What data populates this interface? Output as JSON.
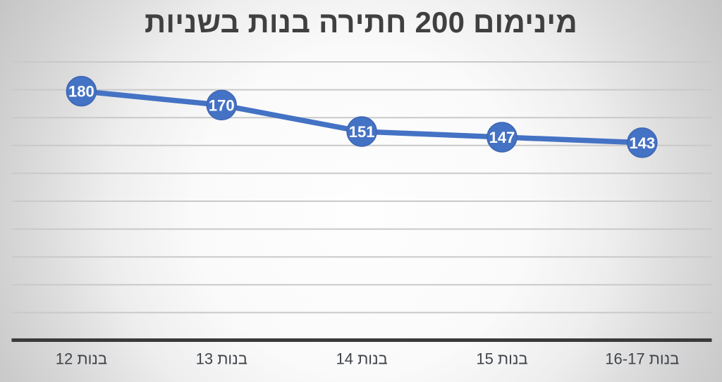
{
  "chart_data": {
    "type": "line",
    "title": "מינימום 200 חתירה בנות בשניות",
    "categories": [
      "בנות 12",
      "בנות 13",
      "בנות 14",
      "בנות 15",
      "בנות 16-17"
    ],
    "values": [
      180,
      170,
      151,
      147,
      143
    ],
    "data_labels": [
      "180",
      "170",
      "151",
      "147",
      "143"
    ],
    "xlabel": "",
    "ylabel": "",
    "ylim": [
      0,
      200
    ],
    "gridline_step": 20,
    "grid": "horizontal",
    "legend": "none",
    "colors": {
      "series_line": "#4472c4",
      "marker_fill": "#4472c4",
      "marker_edge": "#3e66b2",
      "data_label_text": "#ffffff",
      "title_text": "#404040",
      "category_label_text": "#3f434a",
      "gridline": "#c9c9c9",
      "axis_line": "#3a3a3a"
    }
  }
}
